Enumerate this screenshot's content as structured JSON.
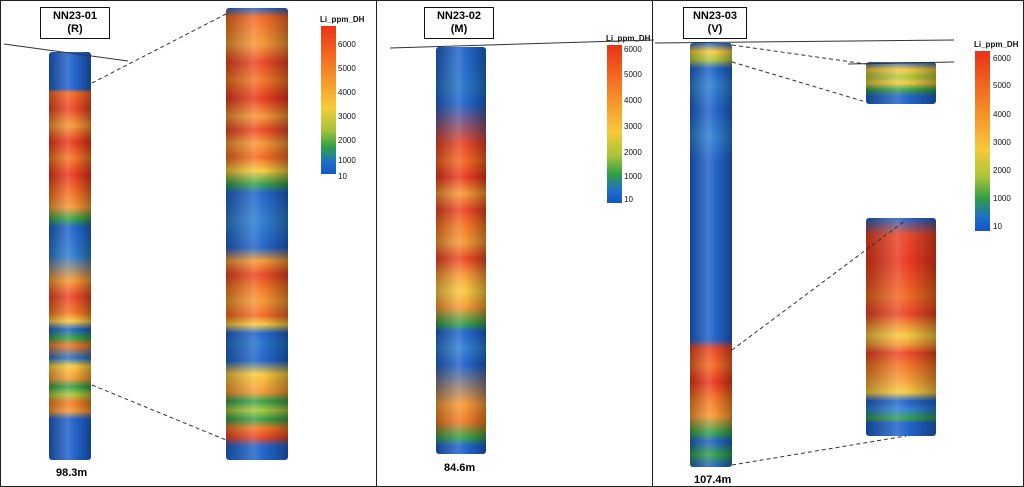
{
  "panels": [
    {
      "hole": "NN23-01",
      "sub": "(R)",
      "depth": "98.3m"
    },
    {
      "hole": "NN23-02",
      "sub": "(M)",
      "depth": "84.6m"
    },
    {
      "hole": "NN23-03",
      "sub": "(V)",
      "depth": "107.4m"
    }
  ],
  "scale": {
    "title": "Li_ppm_DH",
    "ticks": [
      "6000",
      "5000",
      "4000",
      "3000",
      "2000",
      "1000",
      "10"
    ]
  },
  "colors": {
    "low": "#1455c8",
    "mid_low": "#2e9e45",
    "mid": "#f7c93a",
    "high": "#f2641e",
    "max": "#e83219"
  }
}
